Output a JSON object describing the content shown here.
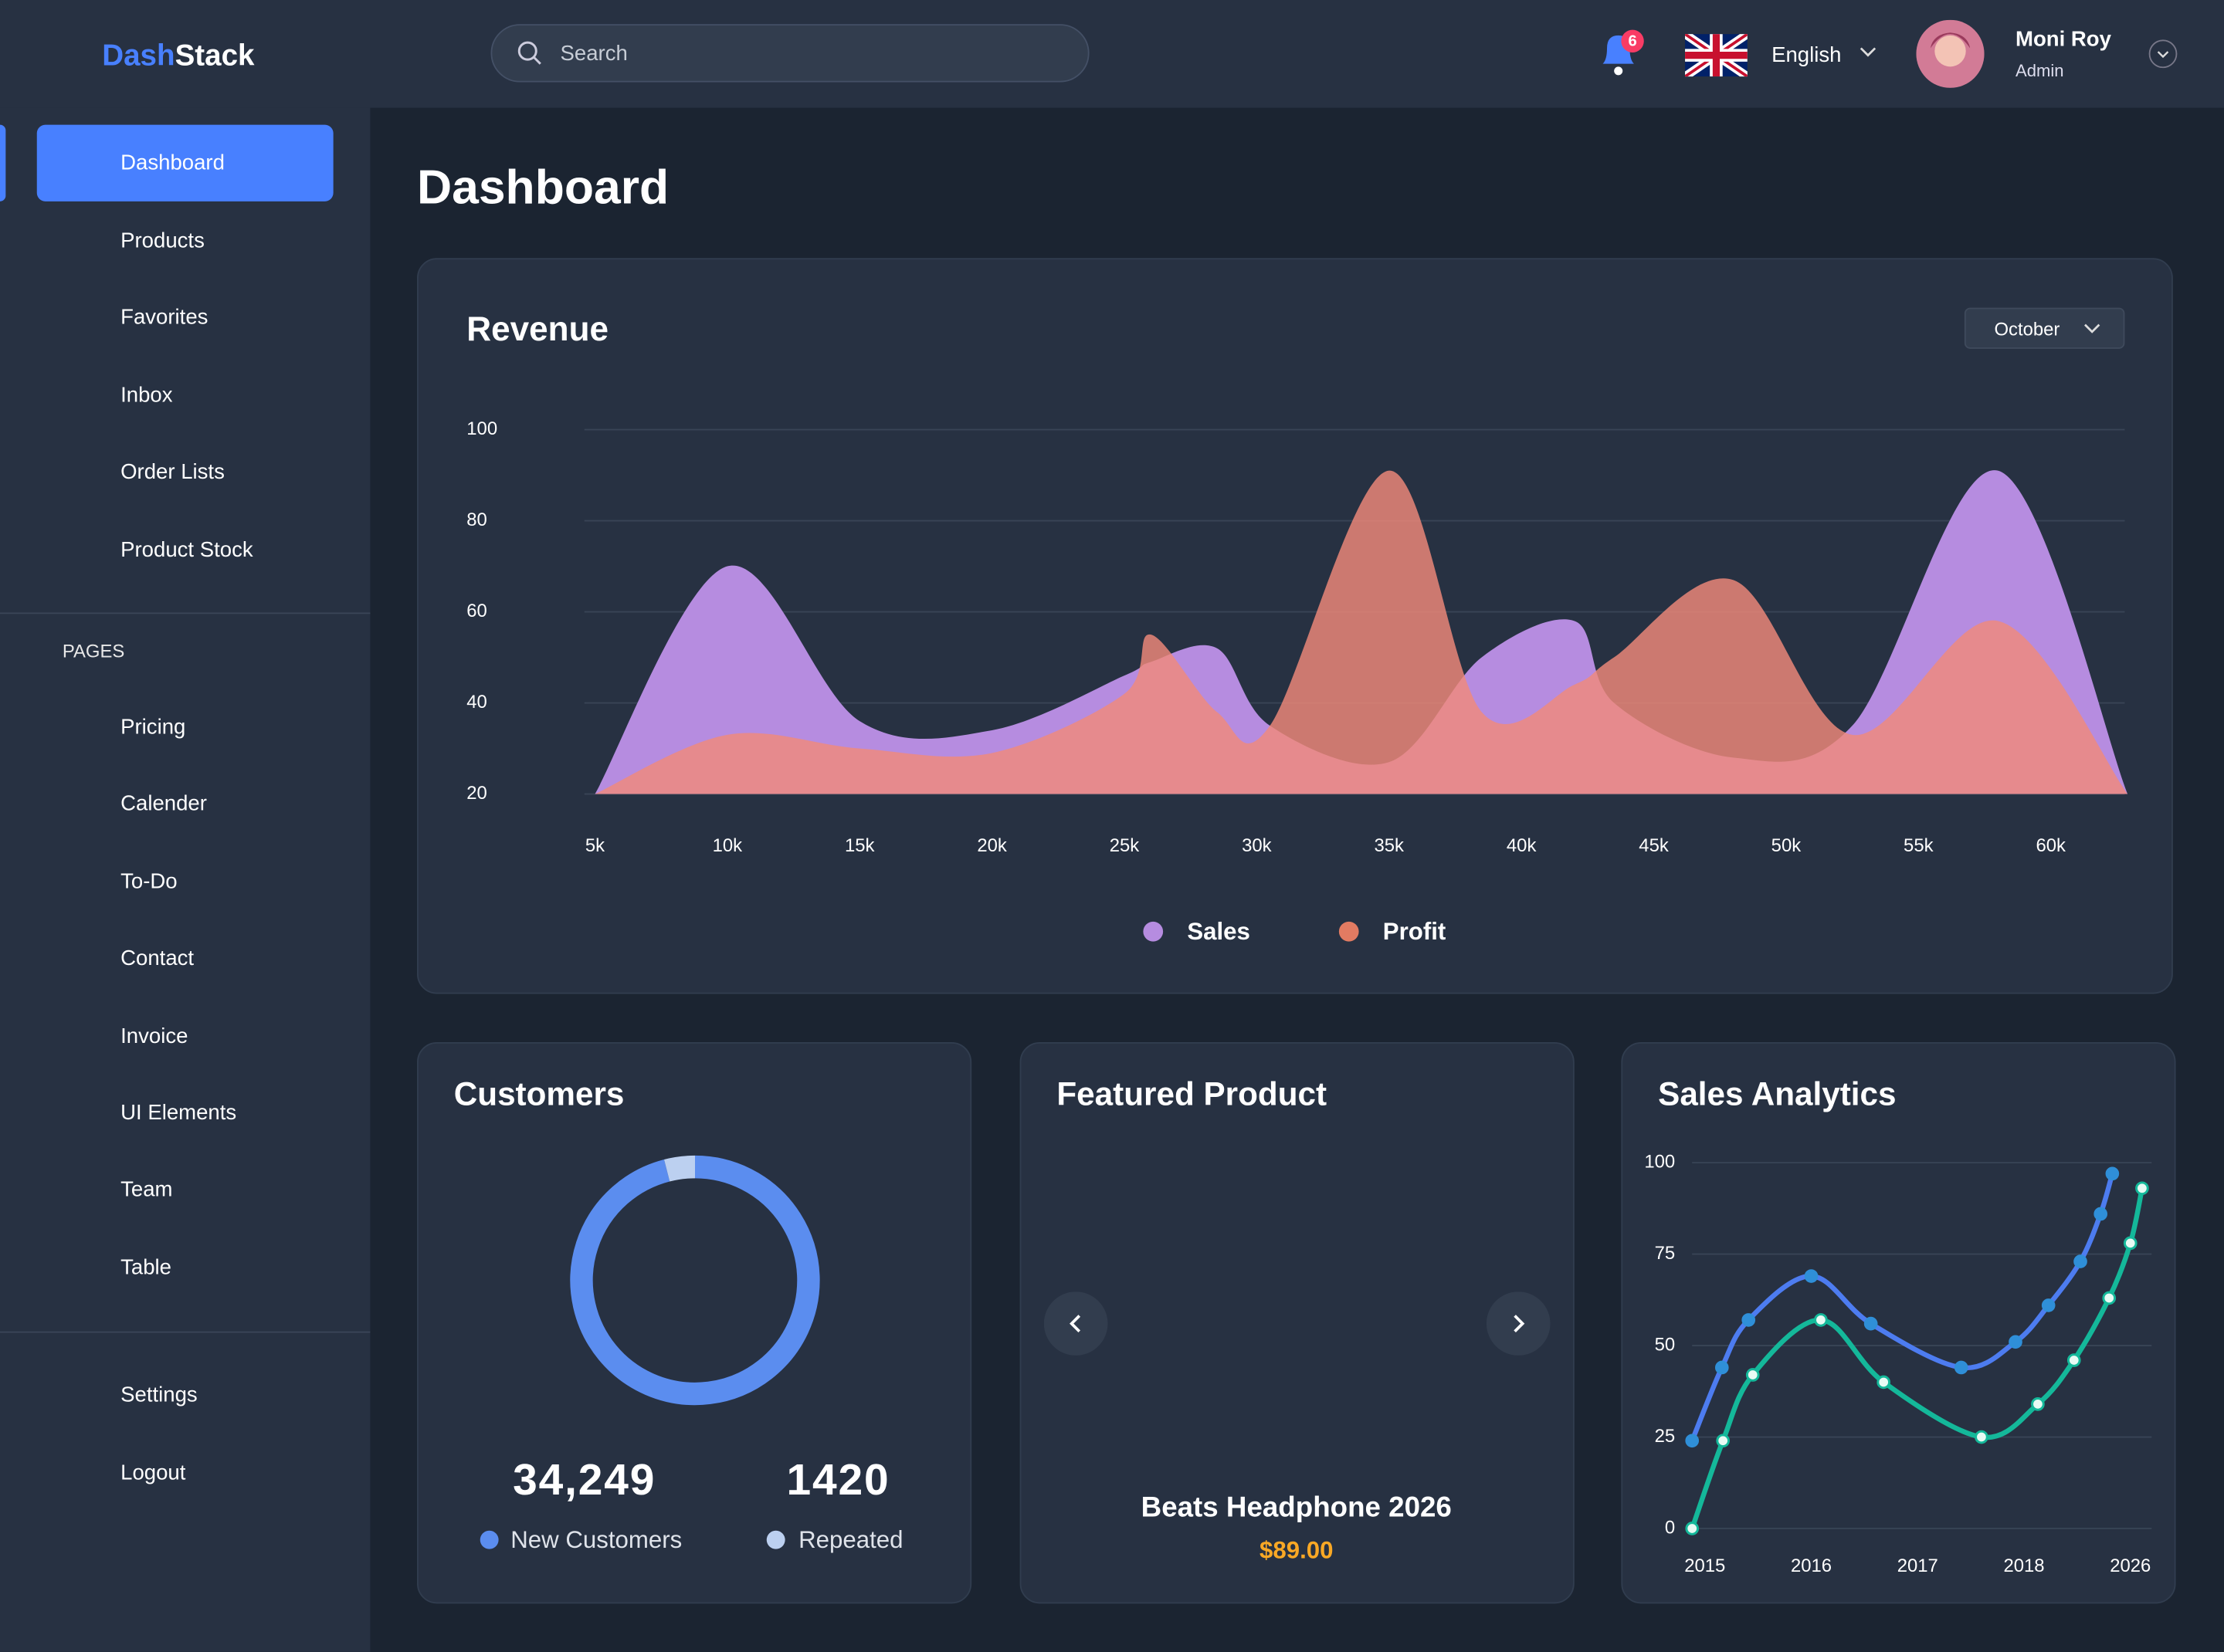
{
  "header": {
    "brand_a": "Dash",
    "brand_b": "Stack",
    "search_placeholder": "Search",
    "notifications": 6,
    "language": "English",
    "user_name": "Moni Roy",
    "user_role": "Admin"
  },
  "sidebar": {
    "main": [
      "Dashboard",
      "Products",
      "Favorites",
      "Inbox",
      "Order Lists",
      "Product Stock"
    ],
    "section": "PAGES",
    "pages": [
      "Pricing",
      "Calender",
      "To-Do",
      "Contact",
      "Invoice",
      "UI Elements",
      "Team",
      "Table"
    ],
    "bottom": [
      "Settings",
      "Logout"
    ]
  },
  "page_title": "Dashboard",
  "revenue_card": {
    "filter": "October"
  },
  "featured_card": {
    "title": "Featured Product",
    "product": "Beats Headphone 2026",
    "price": "$89.00"
  },
  "chart_data": [
    {
      "type": "area",
      "title": "Revenue",
      "x": [
        5000,
        10000,
        15000,
        20000,
        25000,
        26000,
        28500,
        30500,
        35000,
        38500,
        42000,
        43500,
        48000,
        52500,
        58000,
        62900
      ],
      "series": [
        {
          "name": "Sales",
          "color": "#b68ce0",
          "values": [
            20,
            70,
            36,
            34,
            46,
            49,
            52,
            35,
            27,
            50,
            58,
            40,
            28,
            35,
            91,
            20
          ]
        },
        {
          "name": "Profit",
          "color": "#f08a7a",
          "values": [
            20,
            33,
            30,
            29,
            42,
            55,
            38,
            35,
            91,
            38,
            44,
            50,
            67,
            33,
            58,
            20
          ]
        }
      ],
      "legend_colors": [
        "#b68ce0",
        "#e27b62"
      ],
      "xlim": [
        4600,
        62900
      ],
      "ylim": [
        20,
        100
      ],
      "xticks": [
        {
          "value": 5000,
          "label": "5k"
        },
        {
          "value": 10000,
          "label": "10k"
        },
        {
          "value": 15000,
          "label": "15k"
        },
        {
          "value": 20000,
          "label": "20k"
        },
        {
          "value": 25000,
          "label": "25k"
        },
        {
          "value": 30000,
          "label": "30k"
        },
        {
          "value": 35000,
          "label": "35k"
        },
        {
          "value": 40000,
          "label": "40k"
        },
        {
          "value": 45000,
          "label": "45k"
        },
        {
          "value": 50000,
          "label": "50k"
        },
        {
          "value": 55000,
          "label": "55k"
        },
        {
          "value": 60000,
          "label": "60k"
        }
      ],
      "yticks": [
        20,
        40,
        60,
        80,
        100
      ],
      "grid": true
    },
    {
      "type": "donut",
      "title": "Customers",
      "categories": [
        "New Customers",
        "Repeated"
      ],
      "values": [
        34249,
        1420
      ],
      "value_labels": [
        "34,249",
        "1420"
      ],
      "colors": [
        "#5b8def",
        "#bcd0f0"
      ]
    },
    {
      "type": "line",
      "title": "Sales Analytics",
      "series": [
        {
          "color": "#4d7cf0",
          "x": [
            -0.12,
            0.16,
            0.41,
            1.0,
            1.56,
            2.41,
            2.92,
            3.23,
            3.53,
            3.72,
            3.83
          ],
          "values": [
            24,
            44,
            57,
            69,
            56,
            44,
            51,
            61,
            73,
            86,
            97
          ]
        },
        {
          "color": "#14b89a",
          "x": [
            -0.12,
            0.17,
            0.45,
            1.09,
            1.68,
            2.6,
            3.13,
            3.47,
            3.8,
            4.0,
            4.11
          ],
          "values": [
            0,
            24,
            42,
            57,
            40,
            25,
            34,
            46,
            63,
            78,
            93
          ]
        }
      ],
      "xlim": [
        -0.2,
        4.2
      ],
      "ylim": [
        0,
        100
      ],
      "xticks": [
        {
          "value": 0,
          "label": "2015"
        },
        {
          "value": 1,
          "label": "2016"
        },
        {
          "value": 2,
          "label": "2017"
        },
        {
          "value": 3,
          "label": "2018"
        },
        {
          "value": 4,
          "label": "2026"
        }
      ],
      "yticks": [
        0,
        25,
        50,
        75,
        100
      ],
      "grid": true
    }
  ]
}
